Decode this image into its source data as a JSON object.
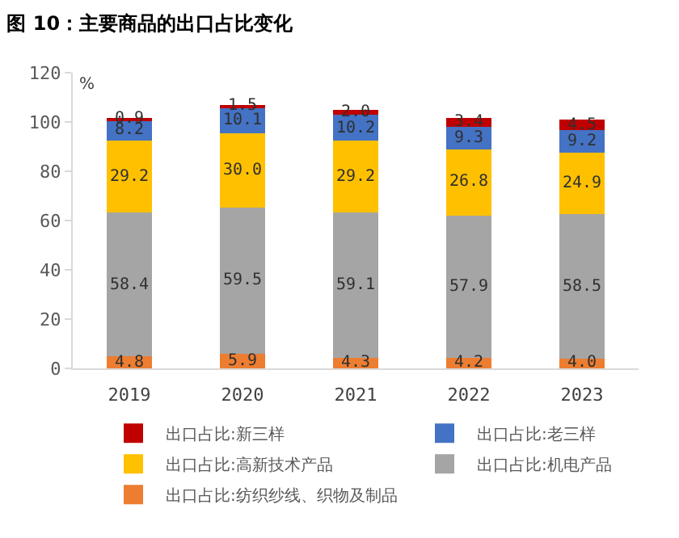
{
  "chart_data": {
    "type": "bar",
    "title": "图 10：主要商品的出口占比变化",
    "ylabel": "%",
    "categories": [
      "2019",
      "2020",
      "2021",
      "2022",
      "2023"
    ],
    "stacked": true,
    "series": [
      {
        "name": "出口占比:纺织纱线、织物及制品",
        "color": "#ed7d31",
        "values": [
          4.8,
          5.9,
          4.3,
          4.2,
          4.0
        ],
        "value_labels": [
          "4.8",
          "5.9",
          "4.3",
          "4.2",
          "4.0"
        ]
      },
      {
        "name": "出口占比:机电产品",
        "color": "#a5a5a5",
        "values": [
          58.4,
          59.5,
          59.1,
          57.9,
          58.5
        ],
        "value_labels": [
          "58.4",
          "59.5",
          "59.1",
          "57.9",
          "58.5"
        ]
      },
      {
        "name": "出口占比:高新技术产品",
        "color": "#ffc000",
        "values": [
          29.2,
          30.0,
          29.2,
          26.8,
          24.9
        ],
        "value_labels": [
          "29.2",
          "30.0",
          "29.2",
          "26.8",
          "24.9"
        ]
      },
      {
        "name": "出口占比:老三样",
        "color": "#4472c4",
        "values": [
          8.2,
          10.1,
          10.2,
          9.3,
          9.2
        ],
        "value_labels": [
          "8.2",
          "10.1",
          "10.2",
          "9.3",
          "9.2"
        ]
      },
      {
        "name": "出口占比:新三样",
        "color": "#c00000",
        "values": [
          0.9,
          1.5,
          2.0,
          3.4,
          4.5
        ],
        "value_labels": [
          "0.9",
          "1.5",
          "2.0",
          "3.4",
          "4.5"
        ]
      }
    ],
    "ylim": [
      0,
      120
    ],
    "yticks": [
      0,
      20,
      40,
      60,
      80,
      100,
      120
    ],
    "legend": "bottom"
  }
}
